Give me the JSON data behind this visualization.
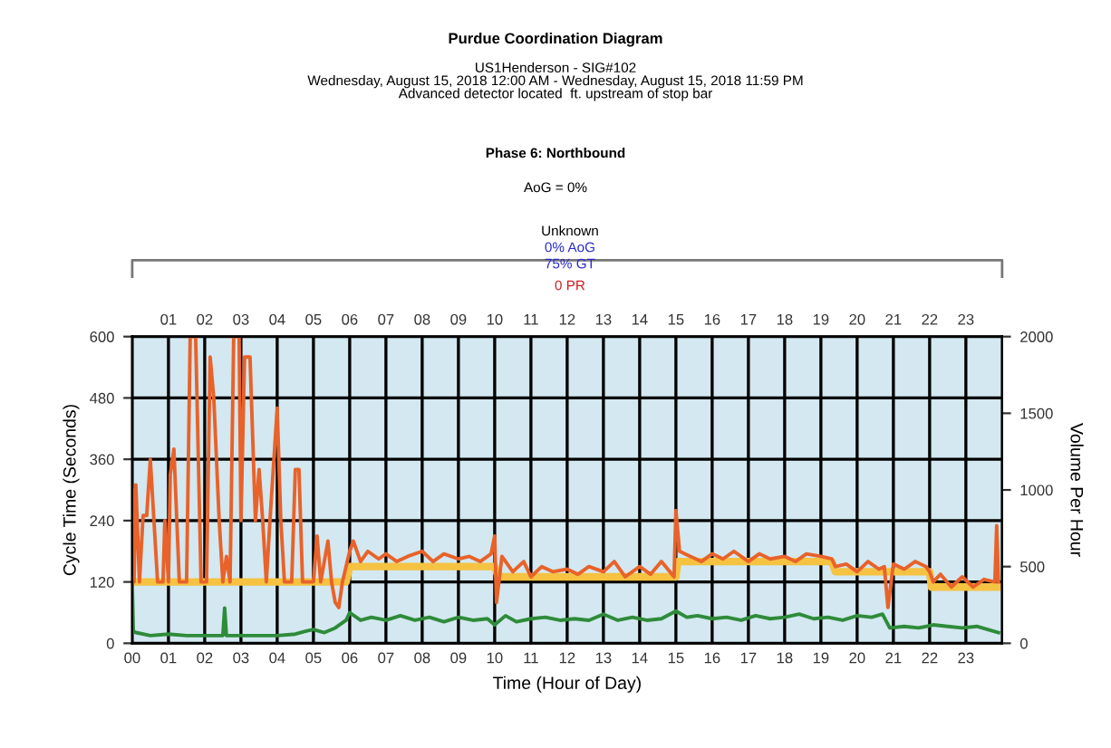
{
  "chart_data": {
    "type": "line",
    "title": "Purdue Coordination Diagram",
    "subtitle": "US1Henderson - SIG#102\nWednesday, August 15, 2018 12:00 AM - Wednesday, August 15, 2018 11:59 PM\nAdvanced detector located  ft. upstream of stop bar",
    "xlabel": "Time (Hour of Day)",
    "ylabel": "Cycle Time (Seconds)",
    "y2label": "Volume Per Hour",
    "annotations": [
      "Phase 6: Northbound",
      "AoG = 0%",
      "Unknown",
      "0% AoG",
      "75% GT",
      "0 PR"
    ],
    "xlim": [
      0,
      24
    ],
    "ylim": [
      0,
      600
    ],
    "y2lim": [
      0,
      2000
    ],
    "xticks": [
      {
        "value": 0,
        "label": "00"
      },
      {
        "value": 1,
        "label": "01"
      },
      {
        "value": 2,
        "label": "02"
      },
      {
        "value": 3,
        "label": "03"
      },
      {
        "value": 4,
        "label": "04"
      },
      {
        "value": 5,
        "label": "05"
      },
      {
        "value": 6,
        "label": "06"
      },
      {
        "value": 7,
        "label": "07"
      },
      {
        "value": 8,
        "label": "08"
      },
      {
        "value": 9,
        "label": "09"
      },
      10,
      11,
      12,
      13,
      14,
      15,
      16,
      17,
      18,
      19,
      20,
      21,
      22,
      23
    ],
    "x2lim": [
      0,
      24
    ],
    "x2ticks": [
      {
        "value": 1,
        "label": "01"
      },
      {
        "value": 2,
        "label": "02"
      },
      {
        "value": 3,
        "label": "03"
      },
      {
        "value": 4,
        "label": "04"
      },
      {
        "value": 5,
        "label": "05"
      },
      {
        "value": 6,
        "label": "06"
      },
      {
        "value": 7,
        "label": "07"
      },
      {
        "value": 8,
        "label": "08"
      },
      {
        "value": 9,
        "label": "09"
      },
      10,
      11,
      12,
      13,
      14,
      15,
      16,
      17,
      18,
      19,
      20,
      21,
      22,
      23
    ],
    "yticks": [
      0,
      120,
      240,
      360,
      480,
      600
    ],
    "y2ticks": [
      0,
      500,
      1000,
      1500,
      2000
    ],
    "grid": true,
    "marker": "none",
    "line_style": "solid",
    "series": [
      {
        "color": "#f5c242",
        "x": [
          0,
          5.9,
          6.0,
          10.0,
          10.1,
          15.0,
          15.05,
          19.3,
          19.4,
          22.0,
          22.05,
          23.9
        ],
        "values": [
          120,
          120,
          150,
          150,
          130,
          130,
          160,
          160,
          140,
          140,
          110,
          110
        ]
      },
      {
        "color": "#e8622a",
        "x": [
          0,
          0.05,
          0.1,
          0.2,
          0.3,
          0.4,
          0.5,
          0.6,
          0.7,
          0.85,
          0.9,
          1.0,
          1.05,
          1.15,
          1.3,
          1.5,
          1.6,
          1.75,
          1.9,
          2.05,
          2.15,
          2.25,
          2.4,
          2.5,
          2.6,
          2.7,
          2.8,
          2.95,
          3.0,
          3.1,
          3.25,
          3.4,
          3.5,
          3.6,
          3.7,
          3.8,
          4.0,
          4.1,
          4.2,
          4.4,
          4.5,
          4.6,
          4.7,
          5.0,
          5.1,
          5.2,
          5.4,
          5.5,
          5.6,
          5.7,
          5.8,
          6.0,
          6.1,
          6.3,
          6.5,
          6.8,
          7.0,
          7.3,
          7.6,
          8.0,
          8.3,
          8.6,
          9.0,
          9.3,
          9.6,
          9.9,
          10.0,
          10.05,
          10.2,
          10.5,
          10.8,
          11.0,
          11.3,
          11.6,
          12.0,
          12.3,
          12.6,
          13.0,
          13.3,
          13.6,
          14.0,
          14.3,
          14.6,
          14.95,
          15.0,
          15.1,
          15.4,
          15.7,
          16.0,
          16.3,
          16.6,
          17.0,
          17.3,
          17.6,
          18.0,
          18.3,
          18.6,
          19.0,
          19.3,
          19.4,
          19.7,
          20.0,
          20.3,
          20.6,
          20.75,
          20.85,
          21.0,
          21.3,
          21.6,
          21.9,
          22.0,
          22.1,
          22.3,
          22.6,
          22.9,
          23.2,
          23.5,
          23.8,
          23.85,
          23.9
        ],
        "values": [
          300,
          120,
          310,
          120,
          250,
          250,
          360,
          240,
          120,
          120,
          240,
          120,
          330,
          380,
          120,
          120,
          600,
          600,
          120,
          120,
          560,
          480,
          240,
          120,
          170,
          120,
          600,
          600,
          240,
          560,
          560,
          240,
          340,
          240,
          120,
          240,
          460,
          240,
          120,
          120,
          340,
          340,
          120,
          120,
          210,
          120,
          200,
          120,
          80,
          70,
          120,
          180,
          200,
          160,
          180,
          165,
          175,
          160,
          170,
          180,
          160,
          175,
          165,
          170,
          160,
          175,
          210,
          80,
          170,
          140,
          160,
          130,
          150,
          140,
          145,
          135,
          150,
          140,
          160,
          130,
          150,
          135,
          160,
          130,
          260,
          180,
          170,
          160,
          175,
          165,
          180,
          160,
          175,
          165,
          170,
          160,
          175,
          170,
          165,
          150,
          155,
          140,
          160,
          145,
          150,
          70,
          155,
          145,
          160,
          150,
          140,
          120,
          135,
          110,
          130,
          110,
          125,
          120,
          230,
          120
        ]
      },
      {
        "color": "#2e8b3a",
        "axis": "y2",
        "x": [
          0,
          0.03,
          0.1,
          0.5,
          1.0,
          1.5,
          2.0,
          2.5,
          2.55,
          2.6,
          3.0,
          3.5,
          4.0,
          4.5,
          4.8,
          5.0,
          5.3,
          5.6,
          5.9,
          6.0,
          6.3,
          6.6,
          7.0,
          7.4,
          7.8,
          8.2,
          8.6,
          9.0,
          9.4,
          9.8,
          10.0,
          10.3,
          10.6,
          11.0,
          11.4,
          11.8,
          12.2,
          12.6,
          13.0,
          13.4,
          13.8,
          14.2,
          14.6,
          15.0,
          15.3,
          15.6,
          16.0,
          16.4,
          16.8,
          17.2,
          17.6,
          18.0,
          18.4,
          18.8,
          19.2,
          19.6,
          20.0,
          20.4,
          20.7,
          20.9,
          21.3,
          21.7,
          22.1,
          22.5,
          22.9,
          23.3,
          23.6,
          23.9
        ],
        "values": [
          400,
          80,
          70,
          50,
          60,
          50,
          50,
          50,
          230,
          50,
          50,
          50,
          50,
          60,
          80,
          90,
          70,
          100,
          150,
          200,
          150,
          170,
          150,
          180,
          150,
          170,
          140,
          170,
          150,
          160,
          120,
          180,
          140,
          160,
          170,
          150,
          160,
          150,
          190,
          150,
          170,
          150,
          160,
          210,
          170,
          180,
          160,
          170,
          150,
          180,
          160,
          170,
          190,
          160,
          170,
          150,
          180,
          170,
          190,
          100,
          110,
          100,
          120,
          110,
          100,
          110,
          90,
          70
        ]
      }
    ]
  }
}
